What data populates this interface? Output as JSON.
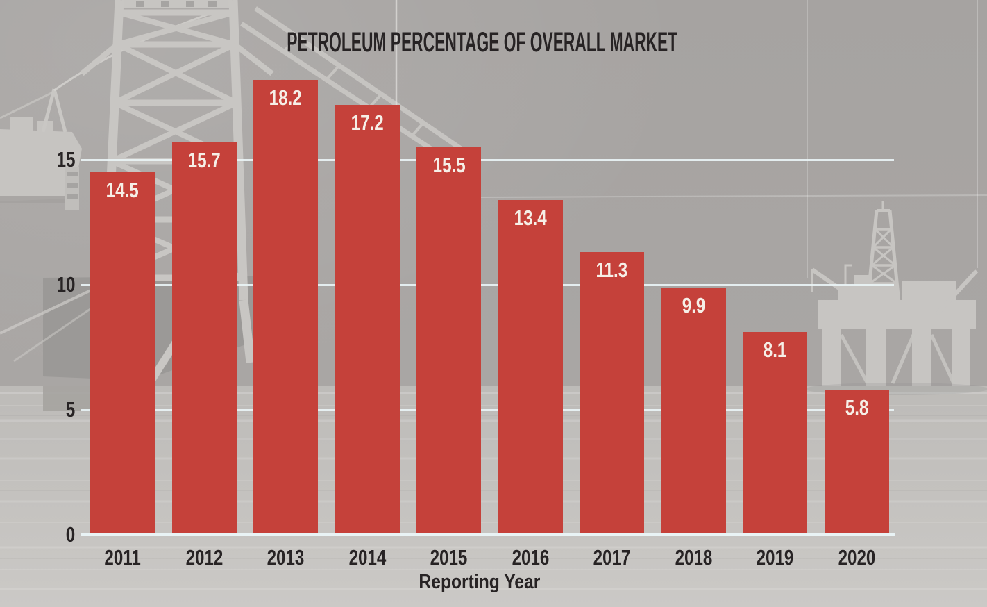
{
  "chart_data": {
    "type": "bar",
    "title": "PETROLEUM PERCENTAGE OF OVERALL MARKET",
    "xlabel": "Reporting Year",
    "ylabel": "",
    "categories": [
      "2011",
      "2012",
      "2013",
      "2014",
      "2015",
      "2016",
      "2017",
      "2018",
      "2019",
      "2020"
    ],
    "values": [
      14.5,
      15.7,
      18.2,
      17.2,
      15.5,
      13.4,
      11.3,
      9.9,
      8.1,
      5.8
    ],
    "value_labels_shown": true,
    "yticks": [
      0,
      5,
      10,
      15
    ],
    "ylim": [
      0,
      20
    ],
    "grid": true,
    "legend": "none",
    "background_illustration": "grayscale photo of offshore oil drilling rigs on water",
    "colors": {
      "bar": "#c5413a",
      "bar_value_text": "#f6efe7",
      "axis_text": "#272324",
      "gridline": "#e9f3f5",
      "sky": "#a8a5a3",
      "water": "#c4c2bf"
    }
  }
}
